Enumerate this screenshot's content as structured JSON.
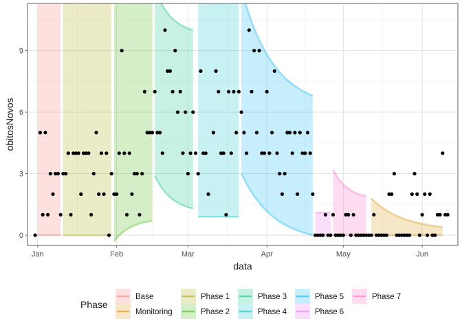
{
  "chart_data": {
    "type": "scatter",
    "xlabel": "data",
    "ylabel": "obitosNovos",
    "x_domain": [
      "2020-12-28",
      "2021-06-15"
    ],
    "y_domain": [
      -0.5,
      11.3
    ],
    "x_ticks": [
      {
        "date": "2021-01-01",
        "label": "Jan"
      },
      {
        "date": "2021-02-01",
        "label": "Feb"
      },
      {
        "date": "2021-03-01",
        "label": "Mar"
      },
      {
        "date": "2021-04-01",
        "label": "Apr"
      },
      {
        "date": "2021-05-01",
        "label": "May"
      },
      {
        "date": "2021-06-01",
        "label": "Jun"
      }
    ],
    "y_ticks": [
      {
        "value": 0,
        "label": "0"
      },
      {
        "value": 3,
        "label": "3"
      },
      {
        "value": 6,
        "label": "6"
      },
      {
        "value": 9,
        "label": "9"
      }
    ],
    "legend": {
      "title": "Phase",
      "placement": "bottom",
      "items": [
        {
          "name": "Base",
          "color": "#F8766D"
        },
        {
          "name": "Monitoring",
          "color": "#D89000"
        },
        {
          "name": "Phase 1",
          "color": "#A3A500"
        },
        {
          "name": "Phase 2",
          "color": "#39B600"
        },
        {
          "name": "Phase 3",
          "color": "#00BF7D"
        },
        {
          "name": "Phase 4",
          "color": "#00BFC4"
        },
        {
          "name": "Phase 5",
          "color": "#00B0F6"
        },
        {
          "name": "Phase 6",
          "color": "#E76BF3"
        },
        {
          "name": "Phase 7",
          "color": "#FF62BC"
        }
      ]
    },
    "ribbons": [
      {
        "phase": "Base",
        "color": "#F8766D",
        "start": "2021-01-01",
        "end": "2021-01-10",
        "lower": [
          0,
          0
        ],
        "upper": [
          12,
          12
        ]
      },
      {
        "phase": "Phase 1",
        "color": "#A3A500",
        "start": "2021-01-11",
        "end": "2021-01-30",
        "lower": [
          0,
          0
        ],
        "upper": [
          12,
          12
        ]
      },
      {
        "phase": "Phase 2",
        "color": "#39B600",
        "start": "2021-01-31",
        "end": "2021-02-15",
        "lower": [
          -0.3,
          0.7
        ],
        "upper": [
          12,
          12
        ]
      },
      {
        "phase": "Phase 3",
        "color": "#00BF7D",
        "start": "2021-02-16",
        "end": "2021-03-03",
        "lower": [
          2.9,
          1.3
        ],
        "upper": [
          12,
          10
        ]
      },
      {
        "phase": "Phase 4",
        "color": "#00BFC4",
        "start": "2021-03-05",
        "end": "2021-03-21",
        "lower": [
          0.9,
          0.9
        ],
        "upper": [
          12,
          12
        ]
      },
      {
        "phase": "Phase 5",
        "color": "#00B0F6",
        "start": "2021-03-22",
        "end": "2021-04-19",
        "lower": [
          3.0,
          0
        ],
        "upper": [
          12,
          6.8
        ]
      },
      {
        "phase": "Phase 6",
        "color": "#E76BF3",
        "start": "2021-04-20",
        "end": "2021-04-26",
        "lower": [
          0,
          0
        ],
        "upper": [
          1.1,
          1.1
        ]
      },
      {
        "phase": "Phase 7",
        "color": "#FF62BC",
        "start": "2021-04-27",
        "end": "2021-05-10",
        "lower": [
          0,
          0
        ],
        "upper": [
          3.2,
          1.9
        ]
      },
      {
        "phase": "Monitoring",
        "color": "#D89000",
        "start": "2021-05-12",
        "end": "2021-06-09",
        "lower": [
          0,
          0
        ],
        "upper": [
          1.8,
          0.4
        ]
      }
    ],
    "points": [
      [
        "2020-12-31",
        0
      ],
      [
        "2021-01-02",
        5
      ],
      [
        "2021-01-03",
        1
      ],
      [
        "2021-01-04",
        5
      ],
      [
        "2021-01-05",
        1
      ],
      [
        "2021-01-06",
        3
      ],
      [
        "2021-01-07",
        2
      ],
      [
        "2021-01-08",
        3
      ],
      [
        "2021-01-09",
        3
      ],
      [
        "2021-01-10",
        1
      ],
      [
        "2021-01-11",
        3
      ],
      [
        "2021-01-12",
        3
      ],
      [
        "2021-01-13",
        4
      ],
      [
        "2021-01-14",
        1
      ],
      [
        "2021-01-15",
        4
      ],
      [
        "2021-01-16",
        4
      ],
      [
        "2021-01-17",
        4
      ],
      [
        "2021-01-18",
        2
      ],
      [
        "2021-01-19",
        4
      ],
      [
        "2021-01-20",
        4
      ],
      [
        "2021-01-21",
        4
      ],
      [
        "2021-01-22",
        1
      ],
      [
        "2021-01-23",
        3
      ],
      [
        "2021-01-24",
        5
      ],
      [
        "2021-01-25",
        2
      ],
      [
        "2021-01-26",
        4
      ],
      [
        "2021-01-27",
        2
      ],
      [
        "2021-01-28",
        4
      ],
      [
        "2021-01-29",
        0
      ],
      [
        "2021-01-30",
        3
      ],
      [
        "2021-01-31",
        2
      ],
      [
        "2021-02-01",
        2
      ],
      [
        "2021-02-02",
        4
      ],
      [
        "2021-02-03",
        9
      ],
      [
        "2021-02-04",
        4
      ],
      [
        "2021-02-05",
        1
      ],
      [
        "2021-02-06",
        4
      ],
      [
        "2021-02-07",
        2
      ],
      [
        "2021-02-08",
        3
      ],
      [
        "2021-02-09",
        3
      ],
      [
        "2021-02-10",
        1
      ],
      [
        "2021-02-11",
        3
      ],
      [
        "2021-02-12",
        7
      ],
      [
        "2021-02-13",
        5
      ],
      [
        "2021-02-14",
        5
      ],
      [
        "2021-02-15",
        5
      ],
      [
        "2021-02-16",
        7
      ],
      [
        "2021-02-17",
        5
      ],
      [
        "2021-02-18",
        5
      ],
      [
        "2021-02-19",
        4
      ],
      [
        "2021-02-20",
        10
      ],
      [
        "2021-02-21",
        8
      ],
      [
        "2021-02-22",
        8
      ],
      [
        "2021-02-23",
        7
      ],
      [
        "2021-02-24",
        9
      ],
      [
        "2021-02-25",
        6
      ],
      [
        "2021-02-26",
        7
      ],
      [
        "2021-02-27",
        4
      ],
      [
        "2021-02-28",
        6
      ],
      [
        "2021-03-01",
        3
      ],
      [
        "2021-03-02",
        4
      ],
      [
        "2021-03-03",
        6
      ],
      [
        "2021-03-04",
        4
      ],
      [
        "2021-03-05",
        3
      ],
      [
        "2021-03-06",
        8
      ],
      [
        "2021-03-07",
        4
      ],
      [
        "2021-03-08",
        4
      ],
      [
        "2021-03-09",
        2
      ],
      [
        "2021-03-11",
        5
      ],
      [
        "2021-03-12",
        8
      ],
      [
        "2021-03-13",
        7
      ],
      [
        "2021-03-14",
        4
      ],
      [
        "2021-03-15",
        4
      ],
      [
        "2021-03-16",
        1
      ],
      [
        "2021-03-17",
        7
      ],
      [
        "2021-03-18",
        4
      ],
      [
        "2021-03-19",
        7
      ],
      [
        "2021-03-20",
        5
      ],
      [
        "2021-03-21",
        7
      ],
      [
        "2021-03-22",
        6
      ],
      [
        "2021-03-23",
        5
      ],
      [
        "2021-03-24",
        4
      ],
      [
        "2021-03-25",
        10
      ],
      [
        "2021-03-26",
        7
      ],
      [
        "2021-03-27",
        9
      ],
      [
        "2021-03-28",
        5
      ],
      [
        "2021-03-29",
        9
      ],
      [
        "2021-03-30",
        4
      ],
      [
        "2021-03-31",
        4
      ],
      [
        "2021-04-01",
        7
      ],
      [
        "2021-04-02",
        4
      ],
      [
        "2021-04-03",
        5
      ],
      [
        "2021-04-04",
        8
      ],
      [
        "2021-04-05",
        4
      ],
      [
        "2021-04-06",
        3
      ],
      [
        "2021-04-07",
        2
      ],
      [
        "2021-04-08",
        3
      ],
      [
        "2021-04-09",
        5
      ],
      [
        "2021-04-10",
        5
      ],
      [
        "2021-04-11",
        4
      ],
      [
        "2021-04-12",
        5
      ],
      [
        "2021-04-13",
        2
      ],
      [
        "2021-04-14",
        5
      ],
      [
        "2021-04-15",
        4
      ],
      [
        "2021-04-16",
        4
      ],
      [
        "2021-04-17",
        5
      ],
      [
        "2021-04-18",
        4
      ],
      [
        "2021-04-19",
        2
      ],
      [
        "2021-04-20",
        0
      ],
      [
        "2021-04-21",
        0
      ],
      [
        "2021-04-22",
        0
      ],
      [
        "2021-04-23",
        0
      ],
      [
        "2021-04-24",
        1
      ],
      [
        "2021-04-25",
        0
      ],
      [
        "2021-04-26",
        0
      ],
      [
        "2021-04-27",
        1
      ],
      [
        "2021-04-28",
        0
      ],
      [
        "2021-04-29",
        0
      ],
      [
        "2021-04-30",
        0
      ],
      [
        "2021-05-01",
        0
      ],
      [
        "2021-05-02",
        1
      ],
      [
        "2021-05-03",
        1
      ],
      [
        "2021-05-04",
        0
      ],
      [
        "2021-05-05",
        1
      ],
      [
        "2021-05-06",
        0
      ],
      [
        "2021-05-07",
        0
      ],
      [
        "2021-05-08",
        0
      ],
      [
        "2021-05-09",
        0
      ],
      [
        "2021-05-10",
        0
      ],
      [
        "2021-05-11",
        0
      ],
      [
        "2021-05-12",
        0
      ],
      [
        "2021-05-13",
        1
      ],
      [
        "2021-05-14",
        0
      ],
      [
        "2021-05-15",
        0
      ],
      [
        "2021-05-16",
        0
      ],
      [
        "2021-05-17",
        0
      ],
      [
        "2021-05-18",
        0
      ],
      [
        "2021-05-19",
        2
      ],
      [
        "2021-05-20",
        2
      ],
      [
        "2021-05-21",
        3
      ],
      [
        "2021-05-22",
        0
      ],
      [
        "2021-05-23",
        0
      ],
      [
        "2021-05-24",
        0
      ],
      [
        "2021-05-25",
        0
      ],
      [
        "2021-05-26",
        0
      ],
      [
        "2021-05-27",
        0
      ],
      [
        "2021-05-28",
        2
      ],
      [
        "2021-05-29",
        3
      ],
      [
        "2021-05-30",
        2
      ],
      [
        "2021-05-31",
        0
      ],
      [
        "2021-06-01",
        1
      ],
      [
        "2021-06-02",
        2
      ],
      [
        "2021-06-03",
        0
      ],
      [
        "2021-06-04",
        2
      ],
      [
        "2021-06-05",
        0
      ],
      [
        "2021-06-06",
        0
      ],
      [
        "2021-06-07",
        1
      ],
      [
        "2021-06-08",
        1
      ],
      [
        "2021-06-09",
        4
      ],
      [
        "2021-06-10",
        1
      ],
      [
        "2021-06-11",
        1
      ]
    ]
  }
}
